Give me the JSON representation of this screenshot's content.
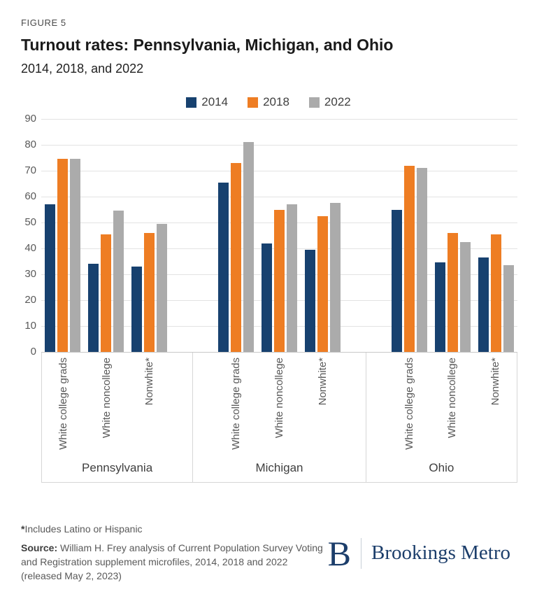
{
  "header": {
    "figure_label": "FIGURE 5",
    "title": "Turnout rates: Pennsylvania, Michigan, and Ohio",
    "subtitle": "2014, 2018, and 2022"
  },
  "legend": [
    {
      "label": "2014",
      "color": "#17416F"
    },
    {
      "label": "2018",
      "color": "#EE7D23"
    },
    {
      "label": "2022",
      "color": "#ABABAB"
    }
  ],
  "chart_data": {
    "type": "bar",
    "title": "Turnout rates: Pennsylvania, Michigan, and Ohio",
    "subtitle": "2014, 2018, and 2022",
    "groups": [
      "Pennsylvania",
      "Michigan",
      "Ohio"
    ],
    "categories": [
      "White college grads",
      "White noncollege",
      "Nonwhite*"
    ],
    "series": [
      {
        "name": "2014",
        "color": "#17416F",
        "values": [
          [
            57,
            34,
            33
          ],
          [
            65.5,
            42,
            39.5
          ],
          [
            55,
            34.5,
            36.5
          ]
        ]
      },
      {
        "name": "2018",
        "color": "#EE7D23",
        "values": [
          [
            74.5,
            45.5,
            46
          ],
          [
            73,
            55,
            52.5
          ],
          [
            72,
            46,
            45.5
          ]
        ]
      },
      {
        "name": "2022",
        "color": "#ABABAB",
        "values": [
          [
            74.5,
            54.5,
            49.5
          ],
          [
            81,
            57,
            57.5
          ],
          [
            71,
            42.5,
            33.5
          ]
        ]
      }
    ],
    "ylim": [
      0,
      90
    ],
    "yticks": [
      90,
      80,
      70,
      60,
      50,
      40,
      30,
      20,
      10,
      0
    ],
    "grid": "horizontal",
    "legend_position": "top-center",
    "group_widths_pct": [
      31.8,
      36.4,
      31.8
    ]
  },
  "footer": {
    "footnote_star": "*",
    "footnote": "Includes Latino or Hispanic",
    "source_label": "Source:",
    "source_text": " William H. Frey analysis of Current Population Survey Voting and Registration supplement microfiles, 2014, 2018 and 2022 (released May 2, 2023)",
    "logo_letter": "B",
    "logo_text": "Brookings Metro"
  }
}
